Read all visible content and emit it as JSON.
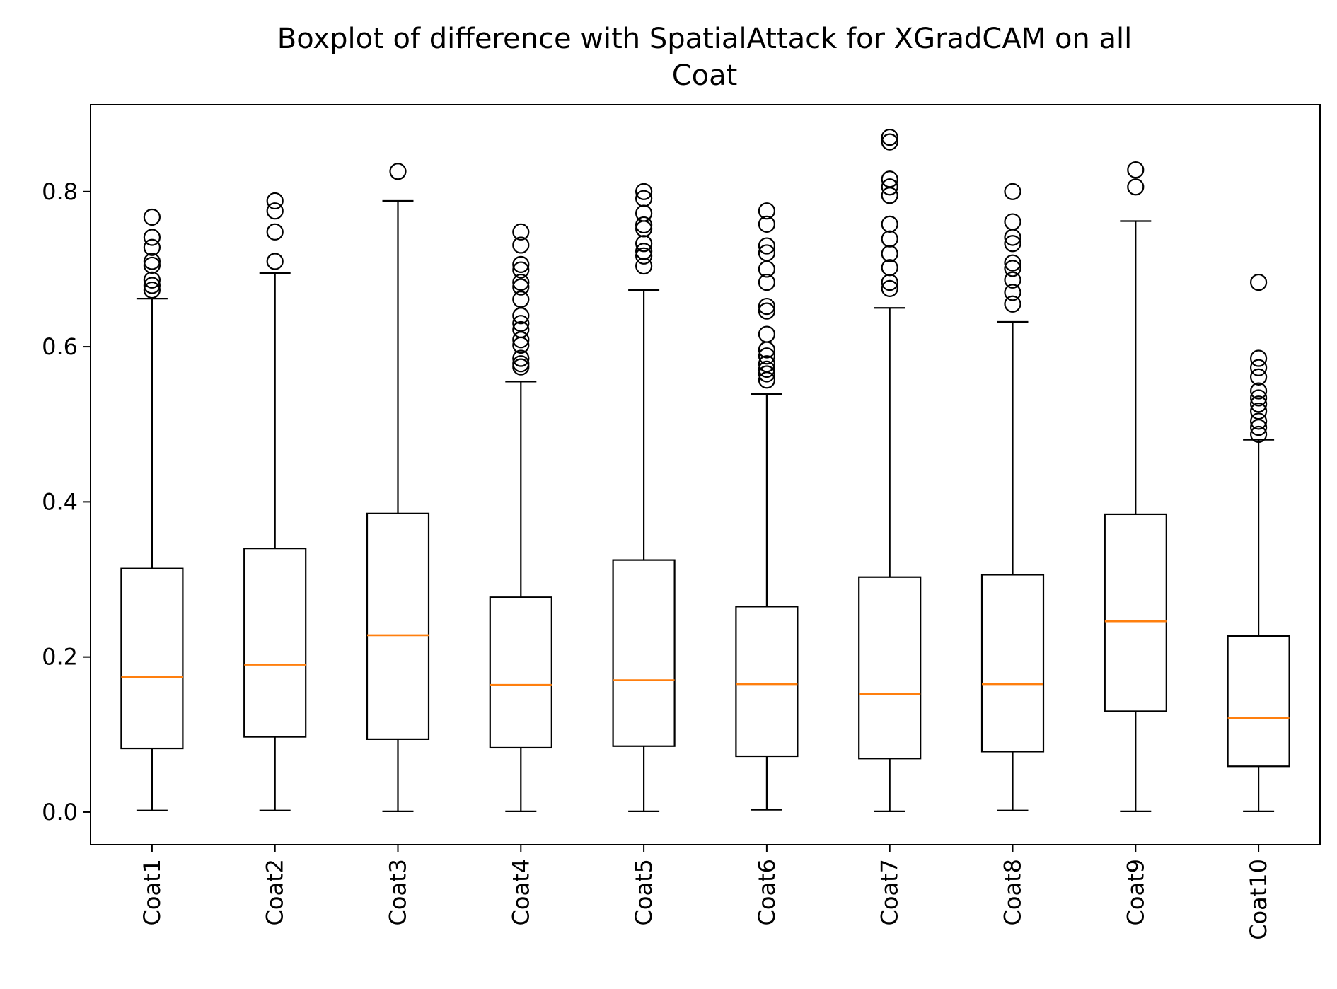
{
  "chart_data": {
    "type": "boxplot",
    "title_lines": [
      "Boxplot of difference with SpatialAttack for XGradCAM on all",
      "Coat"
    ],
    "xlabel": "",
    "ylabel": "",
    "ylim": [
      -0.042,
      0.912
    ],
    "yticks": [
      0.0,
      0.2,
      0.4,
      0.6,
      0.8
    ],
    "ytick_labels": [
      "0.0",
      "0.2",
      "0.4",
      "0.6",
      "0.8"
    ],
    "grid": false,
    "colors": {
      "box": "#000000",
      "median": "#ff7f0e",
      "flier": "#000000"
    },
    "categories": [
      "Coat1",
      "Coat2",
      "Coat3",
      "Coat4",
      "Coat5",
      "Coat6",
      "Coat7",
      "Coat8",
      "Coat9",
      "Coat10"
    ],
    "boxes": [
      {
        "label": "Coat1",
        "whislo": 0.002,
        "q1": 0.082,
        "med": 0.174,
        "q3": 0.314,
        "whishi": 0.662,
        "fliers": [
          0.673,
          0.679,
          0.686,
          0.705,
          0.71,
          0.728,
          0.741,
          0.767
        ]
      },
      {
        "label": "Coat2",
        "whislo": 0.002,
        "q1": 0.097,
        "med": 0.19,
        "q3": 0.34,
        "whishi": 0.695,
        "fliers": [
          0.71,
          0.748,
          0.775,
          0.788
        ]
      },
      {
        "label": "Coat3",
        "whislo": 0.001,
        "q1": 0.094,
        "med": 0.228,
        "q3": 0.385,
        "whishi": 0.788,
        "fliers": [
          0.826
        ]
      },
      {
        "label": "Coat4",
        "whislo": 0.001,
        "q1": 0.083,
        "med": 0.164,
        "q3": 0.277,
        "whishi": 0.555,
        "fliers": [
          0.574,
          0.578,
          0.585,
          0.602,
          0.609,
          0.622,
          0.63,
          0.64,
          0.661,
          0.677,
          0.683,
          0.699,
          0.706,
          0.731,
          0.748
        ]
      },
      {
        "label": "Coat5",
        "whislo": 0.001,
        "q1": 0.085,
        "med": 0.17,
        "q3": 0.325,
        "whishi": 0.673,
        "fliers": [
          0.704,
          0.717,
          0.723,
          0.733,
          0.752,
          0.757,
          0.772,
          0.791,
          0.8
        ]
      },
      {
        "label": "Coat6",
        "whislo": 0.003,
        "q1": 0.072,
        "med": 0.165,
        "q3": 0.265,
        "whishi": 0.539,
        "fliers": [
          0.557,
          0.565,
          0.571,
          0.578,
          0.588,
          0.596,
          0.616,
          0.646,
          0.652,
          0.683,
          0.7,
          0.721,
          0.73,
          0.758,
          0.775
        ]
      },
      {
        "label": "Coat7",
        "whislo": 0.001,
        "q1": 0.069,
        "med": 0.152,
        "q3": 0.303,
        "whishi": 0.65,
        "fliers": [
          0.675,
          0.683,
          0.702,
          0.72,
          0.739,
          0.758,
          0.795,
          0.806,
          0.816,
          0.864,
          0.87
        ]
      },
      {
        "label": "Coat8",
        "whislo": 0.002,
        "q1": 0.078,
        "med": 0.165,
        "q3": 0.306,
        "whishi": 0.632,
        "fliers": [
          0.655,
          0.67,
          0.686,
          0.701,
          0.708,
          0.733,
          0.741,
          0.761,
          0.8
        ]
      },
      {
        "label": "Coat9",
        "whislo": 0.001,
        "q1": 0.13,
        "med": 0.246,
        "q3": 0.384,
        "whishi": 0.762,
        "fliers": [
          0.806,
          0.828
        ]
      },
      {
        "label": "Coat10",
        "whislo": 0.001,
        "q1": 0.059,
        "med": 0.121,
        "q3": 0.227,
        "whishi": 0.48,
        "fliers": [
          0.487,
          0.496,
          0.504,
          0.517,
          0.526,
          0.534,
          0.543,
          0.561,
          0.573,
          0.585,
          0.683
        ]
      }
    ]
  }
}
